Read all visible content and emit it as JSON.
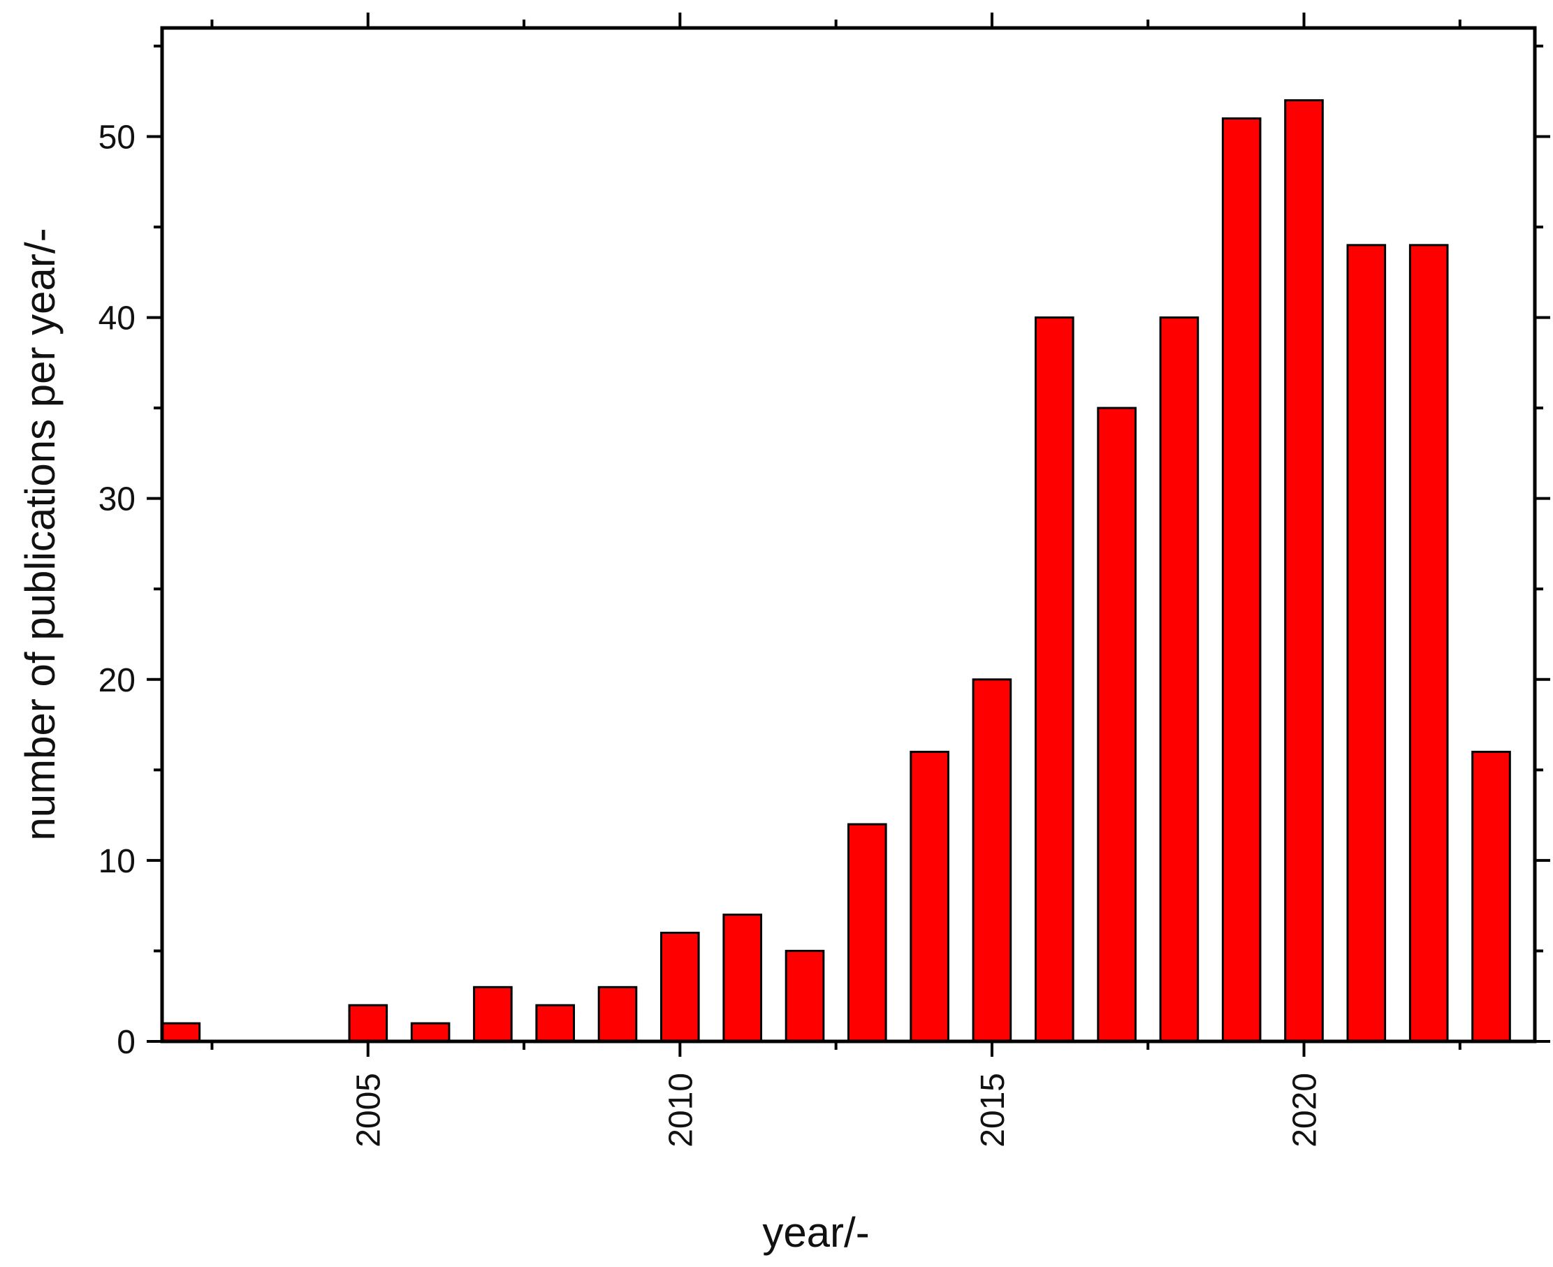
{
  "chart_data": {
    "type": "bar",
    "x": [
      2002,
      2003,
      2004,
      2005,
      2006,
      2007,
      2008,
      2009,
      2010,
      2011,
      2012,
      2013,
      2014,
      2015,
      2016,
      2017,
      2018,
      2019,
      2020,
      2021,
      2022,
      2023
    ],
    "values": [
      1,
      0,
      0,
      2,
      1,
      3,
      2,
      3,
      6,
      7,
      5,
      12,
      16,
      20,
      40,
      35,
      40,
      51,
      52,
      44,
      44,
      16
    ],
    "xlabel": "year/-",
    "ylabel": "number of publications per year/-",
    "xlim": [
      2001.7,
      2023.7
    ],
    "ylim": [
      0,
      56
    ],
    "xticks": [
      2005,
      2010,
      2015,
      2020
    ],
    "yticks": [
      0,
      10,
      20,
      30,
      40,
      50
    ],
    "grid": false,
    "bar_color": "#ff0000",
    "edge_color": "#000000"
  }
}
